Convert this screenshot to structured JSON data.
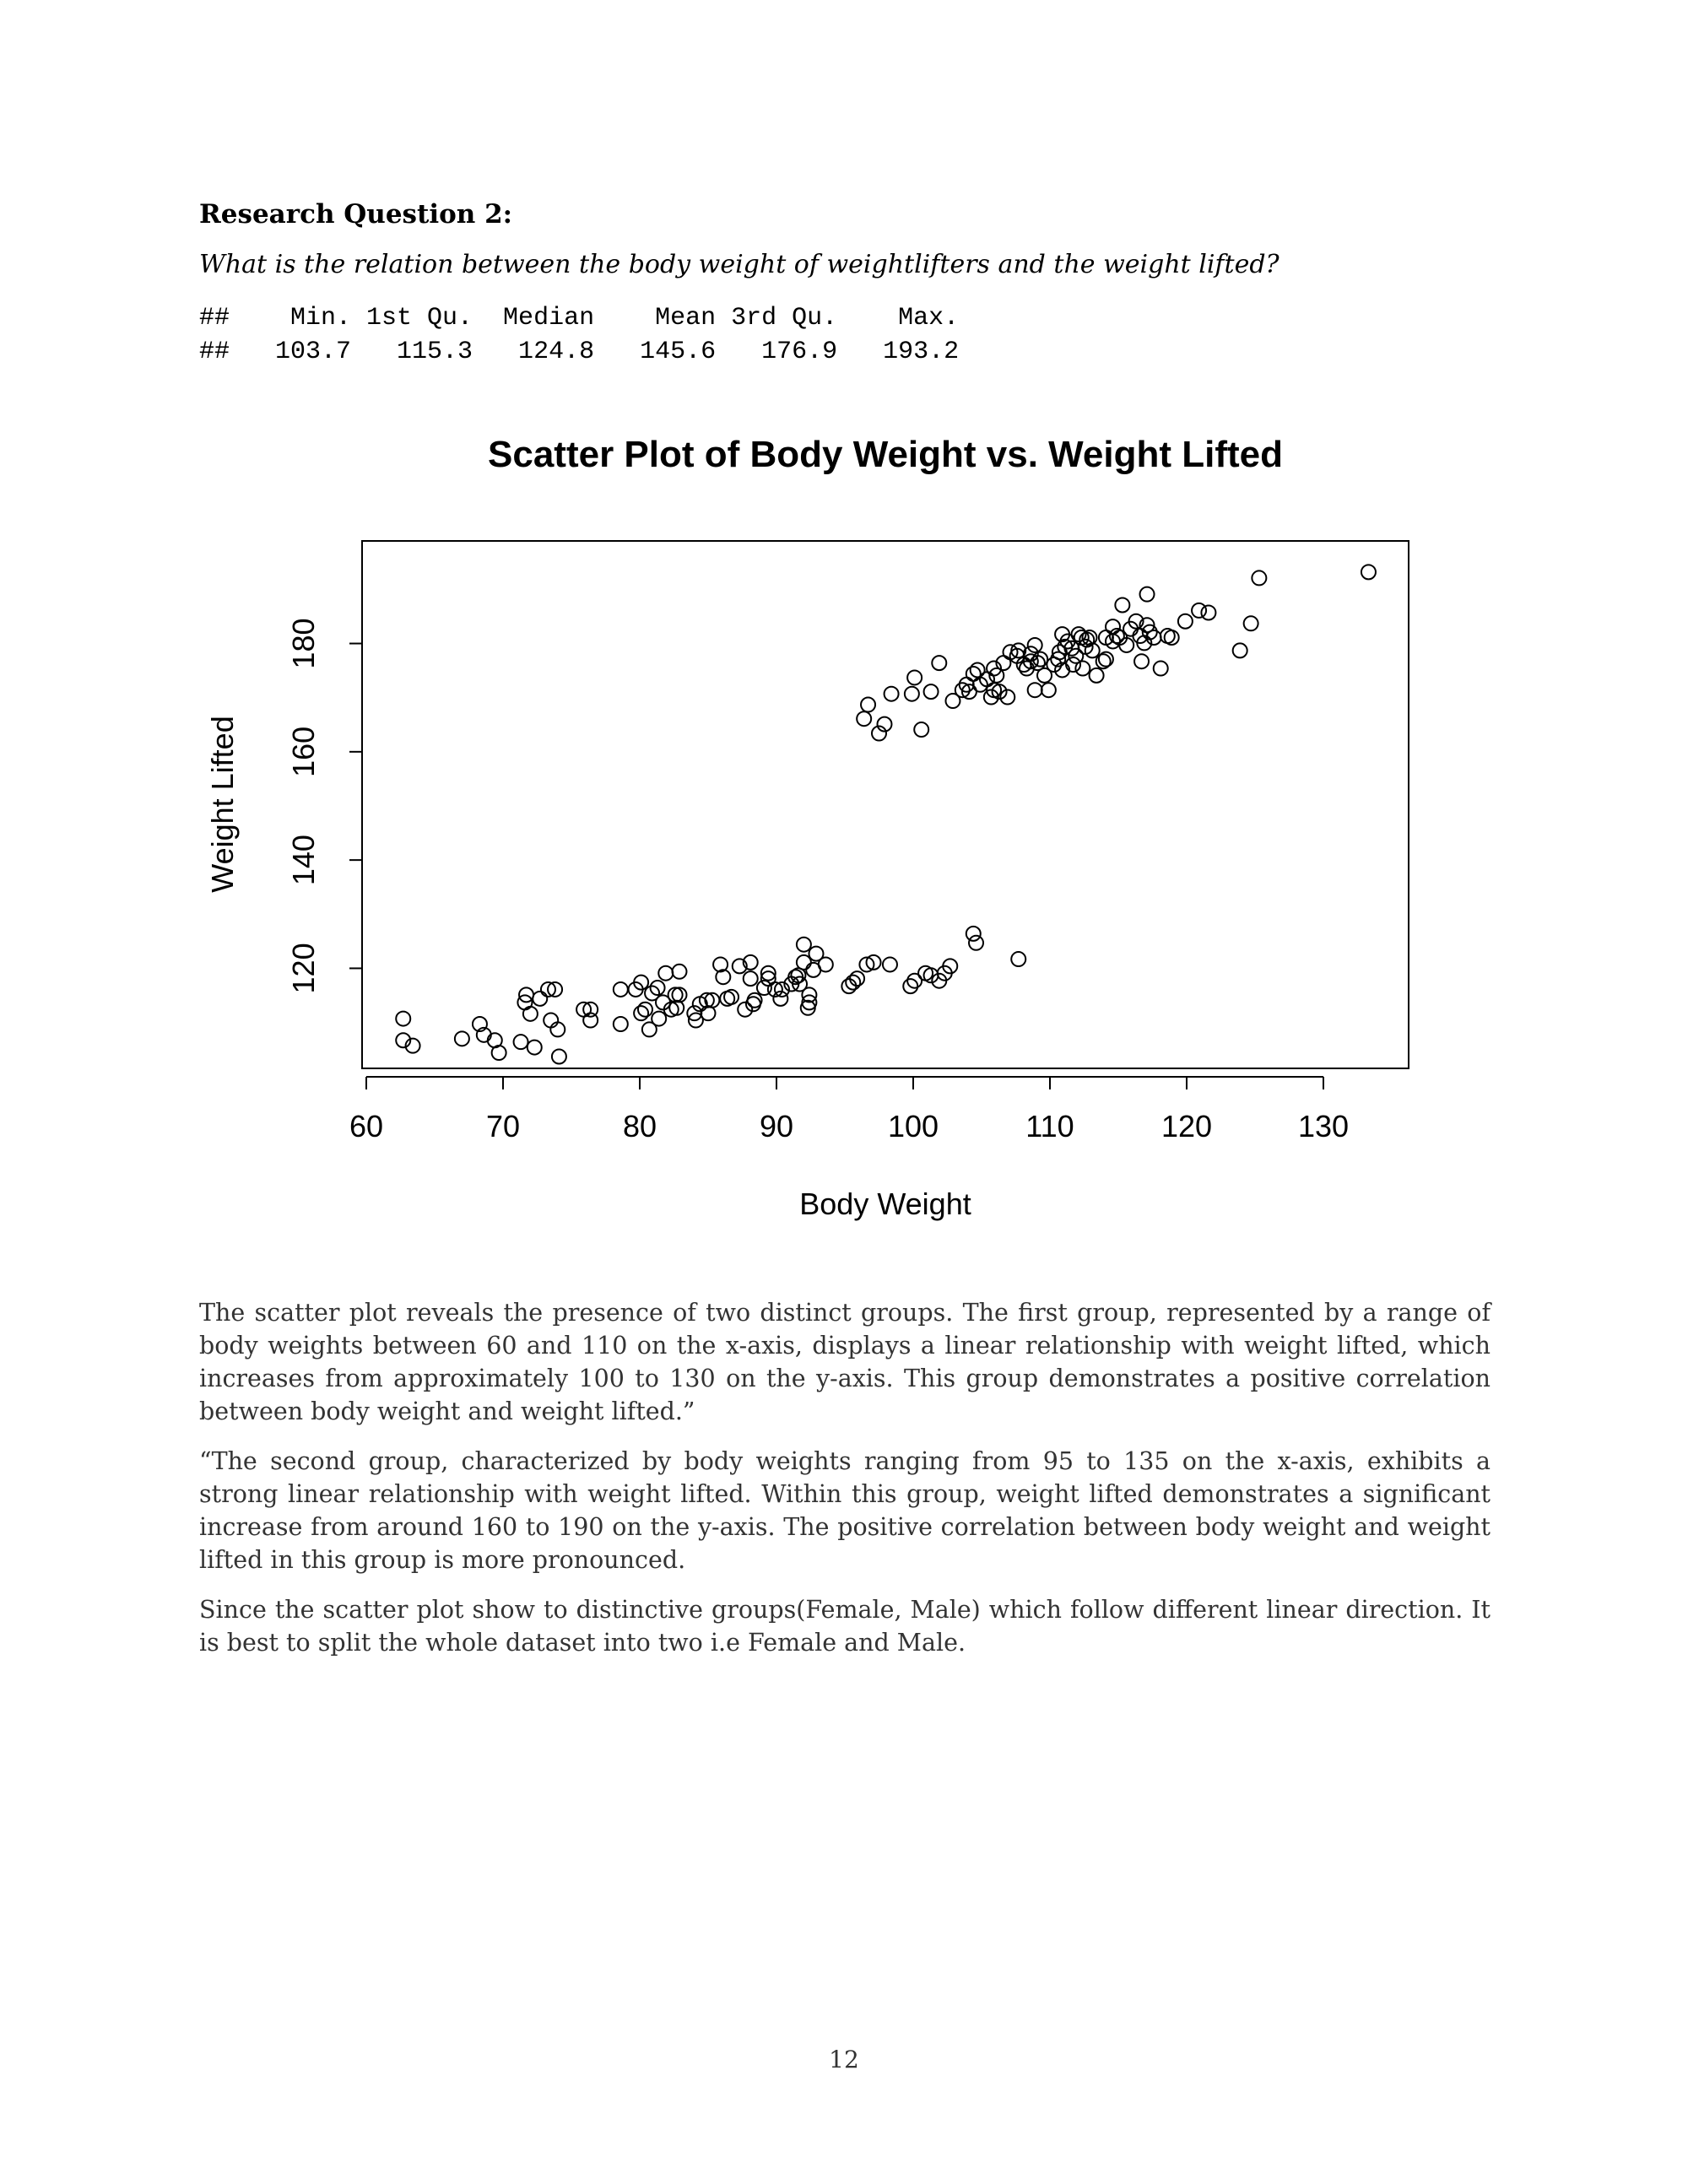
{
  "section": {
    "heading": "Research Question 2:",
    "question": "What is the relation between the body weight of weightlifters and the weight lifted?",
    "summary_line1": "##    Min. 1st Qu.  Median    Mean 3rd Qu.    Max.",
    "summary_line2": "##   103.7   115.3   124.8   145.6   176.9   193.2"
  },
  "chart_data": {
    "type": "scatter",
    "title": "Scatter Plot of Body Weight vs. Weight Lifted",
    "xlabel": "Body Weight",
    "ylabel": "Weight Lifted",
    "xlim": [
      60,
      135
    ],
    "ylim": [
      103.7,
      193.2
    ],
    "xticks": [
      60,
      70,
      80,
      90,
      100,
      110,
      120,
      130
    ],
    "yticks": [
      120,
      140,
      160,
      180
    ],
    "grid": false,
    "marker": "open-circle",
    "points": [
      [
        62.7,
        110.7
      ],
      [
        62.7,
        106.7
      ],
      [
        63.4,
        105.7
      ],
      [
        67,
        107
      ],
      [
        68.3,
        109.7
      ],
      [
        68.6,
        107.7
      ],
      [
        69.4,
        106.7
      ],
      [
        69.7,
        104.4
      ],
      [
        71.3,
        106.4
      ],
      [
        71.6,
        113.7
      ],
      [
        71.7,
        115.1
      ],
      [
        72,
        111.6
      ],
      [
        72.3,
        105.4
      ],
      [
        72.7,
        114.4
      ],
      [
        73.3,
        116.1
      ],
      [
        73.5,
        110.4
      ],
      [
        73.8,
        116.1
      ],
      [
        74,
        108.7
      ],
      [
        74.1,
        103.7
      ],
      [
        75.9,
        112.4
      ],
      [
        76.4,
        112.4
      ],
      [
        76.4,
        110.4
      ],
      [
        78.6,
        116.1
      ],
      [
        78.6,
        109.7
      ],
      [
        79.7,
        116.1
      ],
      [
        80.1,
        117.4
      ],
      [
        80.4,
        112.4
      ],
      [
        80.1,
        111.7
      ],
      [
        80.7,
        108.7
      ],
      [
        80.9,
        115.4
      ],
      [
        81.3,
        116.4
      ],
      [
        81.4,
        110.7
      ],
      [
        81.7,
        113.7
      ],
      [
        81.9,
        119.1
      ],
      [
        82.3,
        112.4
      ],
      [
        82.6,
        115.1
      ],
      [
        82.7,
        112.7
      ],
      [
        82.9,
        115.1
      ],
      [
        82.9,
        119.4
      ],
      [
        84,
        111.7
      ],
      [
        84.1,
        110.4
      ],
      [
        84.4,
        113.4
      ],
      [
        84.9,
        114.1
      ],
      [
        85,
        111.7
      ],
      [
        85.3,
        114.1
      ],
      [
        85.9,
        120.7
      ],
      [
        86.1,
        118.4
      ],
      [
        86.4,
        114.4
      ],
      [
        86.7,
        114.7
      ],
      [
        87.3,
        120.4
      ],
      [
        87.7,
        112.4
      ],
      [
        88.1,
        118.1
      ],
      [
        88.1,
        121.1
      ],
      [
        88.3,
        113.4
      ],
      [
        88.4,
        114.1
      ],
      [
        89.1,
        116.4
      ],
      [
        89.4,
        118.1
      ],
      [
        89.4,
        119.1
      ],
      [
        89.9,
        116.1
      ],
      [
        90.3,
        114.4
      ],
      [
        90.4,
        116.1
      ],
      [
        91.1,
        117.1
      ],
      [
        91.4,
        118.4
      ],
      [
        91.6,
        118.7
      ],
      [
        91.7,
        117.1
      ],
      [
        92,
        124.4
      ],
      [
        92,
        121.1
      ],
      [
        92.3,
        112.7
      ],
      [
        92.4,
        115.1
      ],
      [
        92.4,
        113.7
      ],
      [
        92.7,
        119.7
      ],
      [
        92.9,
        122.7
      ],
      [
        93.6,
        120.7
      ],
      [
        95.3,
        116.7
      ],
      [
        95.6,
        117.4
      ],
      [
        95.9,
        118.1
      ],
      [
        96.6,
        120.7
      ],
      [
        97.1,
        121.1
      ],
      [
        98.3,
        120.7
      ],
      [
        99.8,
        116.7
      ],
      [
        100.1,
        117.7
      ],
      [
        100.9,
        119.1
      ],
      [
        101.3,
        118.7
      ],
      [
        101.9,
        117.7
      ],
      [
        102.3,
        119.1
      ],
      [
        102.7,
        120.4
      ],
      [
        104.4,
        126.4
      ],
      [
        104.6,
        124.7
      ],
      [
        107.7,
        121.7
      ],
      [
        96.4,
        166.1
      ],
      [
        96.7,
        168.7
      ],
      [
        97.5,
        163.4
      ],
      [
        97.9,
        165.1
      ],
      [
        98.4,
        170.7
      ],
      [
        99.9,
        170.7
      ],
      [
        100.1,
        173.7
      ],
      [
        100.6,
        164.1
      ],
      [
        101.3,
        171.1
      ],
      [
        101.9,
        176.4
      ],
      [
        102.9,
        169.4
      ],
      [
        103.6,
        171.4
      ],
      [
        103.9,
        172.4
      ],
      [
        104.1,
        171.1
      ],
      [
        104.4,
        174.4
      ],
      [
        104.7,
        175.1
      ],
      [
        104.9,
        172.4
      ],
      [
        105.4,
        173.4
      ],
      [
        105.7,
        170.1
      ],
      [
        105.9,
        171.4
      ],
      [
        105.9,
        175.4
      ],
      [
        106.1,
        174.1
      ],
      [
        106.3,
        171.1
      ],
      [
        106.6,
        176.4
      ],
      [
        106.9,
        170.1
      ],
      [
        107.1,
        178.4
      ],
      [
        107.6,
        177.7
      ],
      [
        107.7,
        178.7
      ],
      [
        108.1,
        176.1
      ],
      [
        108.3,
        175.4
      ],
      [
        108.6,
        176.7
      ],
      [
        108.6,
        178.1
      ],
      [
        108.9,
        179.7
      ],
      [
        108.9,
        171.4
      ],
      [
        109.1,
        176.4
      ],
      [
        109.3,
        177.1
      ],
      [
        109.6,
        174.1
      ],
      [
        109.9,
        171.4
      ],
      [
        110.3,
        176.1
      ],
      [
        110.6,
        177.1
      ],
      [
        110.7,
        178.4
      ],
      [
        110.9,
        181.7
      ],
      [
        110.9,
        175.1
      ],
      [
        111.1,
        179.4
      ],
      [
        111.3,
        180.4
      ],
      [
        111.6,
        179.1
      ],
      [
        111.7,
        176.1
      ],
      [
        111.9,
        177.7
      ],
      [
        112.1,
        181.7
      ],
      [
        112.3,
        181.1
      ],
      [
        112.4,
        175.4
      ],
      [
        112.6,
        179.4
      ],
      [
        112.7,
        180.7
      ],
      [
        112.9,
        181.1
      ],
      [
        113.1,
        178.7
      ],
      [
        113.4,
        174.1
      ],
      [
        113.9,
        176.7
      ],
      [
        114.1,
        177.1
      ],
      [
        114.1,
        181.1
      ],
      [
        114.6,
        180.4
      ],
      [
        114.6,
        183.1
      ],
      [
        114.9,
        181.4
      ],
      [
        115.1,
        181.1
      ],
      [
        115.3,
        187.1
      ],
      [
        115.6,
        179.7
      ],
      [
        115.9,
        182.7
      ],
      [
        116.3,
        184.1
      ],
      [
        116.6,
        181.4
      ],
      [
        116.7,
        176.7
      ],
      [
        116.9,
        180.1
      ],
      [
        117.1,
        189.1
      ],
      [
        117.1,
        183.4
      ],
      [
        117.3,
        182.1
      ],
      [
        117.6,
        181.1
      ],
      [
        118.1,
        175.4
      ],
      [
        118.6,
        181.4
      ],
      [
        118.9,
        181.1
      ],
      [
        119.9,
        184.1
      ],
      [
        120.9,
        186.1
      ],
      [
        121.6,
        185.7
      ],
      [
        123.9,
        178.7
      ],
      [
        124.7,
        183.7
      ],
      [
        125.3,
        192.1
      ],
      [
        133.3,
        193.2
      ]
    ]
  },
  "body": {
    "para1": "The scatter plot reveals the presence of two distinct groups. The first group, represented by a range of body weights between 60 and 110 on the x-axis, displays a linear relationship with weight lifted, which increases from approximately 100 to 130 on the y-axis. This group demonstrates a positive correlation between body weight and weight lifted.”",
    "para2": "“The second group, characterized by body weights ranging from 95 to 135 on the x-axis, exhibits a strong linear relationship with weight lifted. Within this group, weight lifted demonstrates a significant increase from around 160 to 190 on the y-axis. The positive correlation between body weight and weight lifted in this group is more pronounced.",
    "para3": "Since the scatter plot show to distinctive groups(Female, Male) which follow different linear direction. It is best to split the whole dataset into two i.e Female and Male."
  },
  "footer": {
    "page_number": "12"
  }
}
